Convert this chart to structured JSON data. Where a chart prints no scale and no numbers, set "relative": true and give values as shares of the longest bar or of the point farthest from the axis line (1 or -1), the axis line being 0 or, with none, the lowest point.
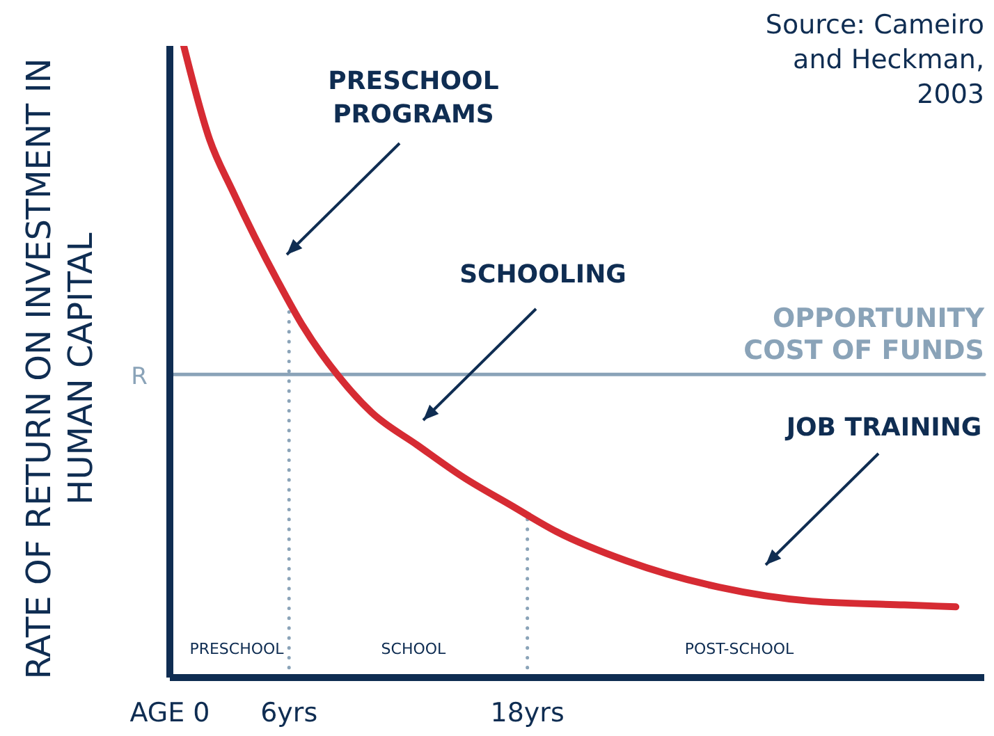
{
  "chart_data": {
    "type": "line",
    "ylabel": "RATE OF RETURN ON INVESTMENT IN HUMAN CAPITAL",
    "relative": true,
    "xlim": [
      0,
      41
    ],
    "xticks": [
      {
        "value": 0,
        "label": "AGE 0"
      },
      {
        "value": 6,
        "label": "6yrs"
      },
      {
        "value": 18,
        "label": "18yrs"
      }
    ],
    "series": [
      {
        "color": "#d62b33",
        "x": [
          0.7,
          2.0,
          3.15,
          4.27,
          5.46,
          6.65,
          8.47,
          10.15,
          12.46,
          14.78,
          17.16,
          19.47,
          22.97,
          27.66,
          32.28,
          36.97,
          39.57
        ],
        "values": [
          1.0,
          0.852,
          0.771,
          0.698,
          0.626,
          0.559,
          0.478,
          0.42,
          0.368,
          0.317,
          0.273,
          0.231,
          0.185,
          0.143,
          0.121,
          0.115,
          0.112
        ]
      }
    ],
    "ref_lines": [
      {
        "axis": "y",
        "value": 0.48,
        "label": "OPPORTUNITY COST OF FUNDS",
        "color": "#8aa3b8",
        "line_style": "solid"
      },
      {
        "axis": "x",
        "value": 6,
        "color": "#8aa3b8",
        "line_style": "dotted"
      },
      {
        "axis": "x",
        "value": 18,
        "color": "#8aa3b8",
        "line_style": "dotted"
      }
    ],
    "annotations": [
      "PRESCHOOL PROGRAMS",
      "SCHOOLING",
      "JOB TRAINING",
      "R",
      "Source: Cameiro and Heckman, 2003",
      "PRESCHOOL",
      "SCHOOL",
      "POST-SCHOOL"
    ],
    "grid": false,
    "legend": false,
    "marker": "none",
    "line_style": "solid"
  }
}
